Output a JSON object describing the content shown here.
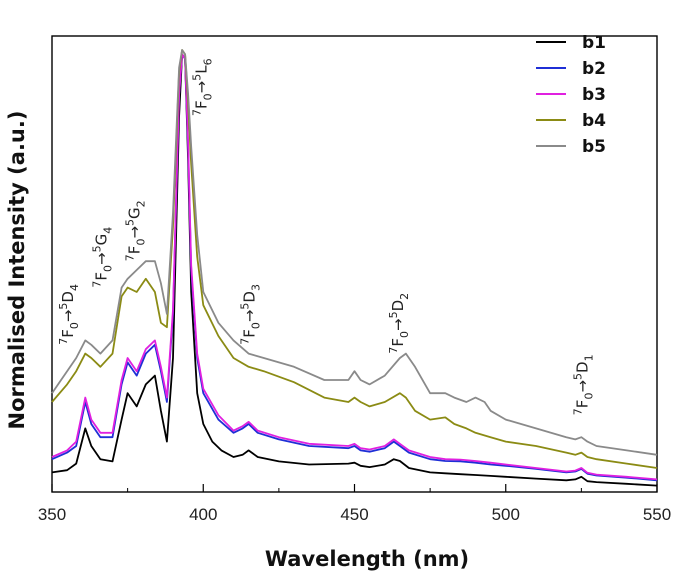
{
  "chart_data": {
    "type": "line",
    "title": "",
    "xlabel": "Wavelength (nm)",
    "ylabel": "Normalised Intensity (a.u.)",
    "xlim": [
      350,
      550
    ],
    "ylim": [
      0,
      1.0
    ],
    "xticks": [
      350,
      400,
      450,
      500,
      550
    ],
    "grid": false,
    "legend_position": "top-right",
    "series": [
      {
        "name": "b1",
        "color": "#000000",
        "x": [
          350,
          355,
          358,
          361,
          363,
          366,
          370,
          373,
          375,
          378,
          381,
          384,
          386,
          388,
          390,
          392,
          393,
          394,
          395,
          396,
          398,
          400,
          403,
          406,
          410,
          413,
          415,
          418,
          425,
          435,
          448,
          450,
          452,
          455,
          460,
          463,
          465,
          468,
          475,
          480,
          485,
          490,
          495,
          500,
          510,
          520,
          523,
          525,
          527,
          530,
          540,
          550
        ],
        "y": [
          0.04,
          0.045,
          0.06,
          0.14,
          0.1,
          0.07,
          0.065,
          0.16,
          0.22,
          0.19,
          0.24,
          0.26,
          0.18,
          0.11,
          0.3,
          0.85,
          0.99,
          0.98,
          0.75,
          0.45,
          0.22,
          0.15,
          0.11,
          0.09,
          0.075,
          0.08,
          0.09,
          0.075,
          0.065,
          0.058,
          0.06,
          0.062,
          0.055,
          0.052,
          0.058,
          0.07,
          0.066,
          0.05,
          0.04,
          0.038,
          0.036,
          0.034,
          0.032,
          0.03,
          0.026,
          0.022,
          0.024,
          0.03,
          0.02,
          0.018,
          0.014,
          0.01
        ]
      },
      {
        "name": "b2",
        "color": "#1f2fd6",
        "x": [
          350,
          355,
          358,
          361,
          363,
          366,
          370,
          373,
          375,
          378,
          381,
          384,
          386,
          388,
          390,
          392,
          393,
          394,
          395,
          396,
          398,
          400,
          405,
          410,
          413,
          415,
          418,
          425,
          435,
          448,
          450,
          452,
          455,
          460,
          463,
          465,
          468,
          475,
          480,
          485,
          490,
          495,
          500,
          510,
          520,
          523,
          525,
          527,
          530,
          540,
          550
        ],
        "y": [
          0.07,
          0.085,
          0.1,
          0.2,
          0.15,
          0.12,
          0.12,
          0.24,
          0.29,
          0.26,
          0.31,
          0.33,
          0.27,
          0.2,
          0.4,
          0.9,
          0.99,
          0.98,
          0.78,
          0.5,
          0.3,
          0.22,
          0.16,
          0.13,
          0.14,
          0.15,
          0.13,
          0.115,
          0.1,
          0.095,
          0.1,
          0.09,
          0.087,
          0.095,
          0.11,
          0.1,
          0.085,
          0.07,
          0.066,
          0.065,
          0.062,
          0.058,
          0.055,
          0.048,
          0.04,
          0.042,
          0.048,
          0.037,
          0.033,
          0.028,
          0.022
        ]
      },
      {
        "name": "b3",
        "color": "#e020e0",
        "x": [
          350,
          355,
          358,
          361,
          363,
          366,
          370,
          373,
          375,
          378,
          381,
          384,
          386,
          388,
          390,
          392,
          393,
          394,
          395,
          396,
          398,
          400,
          405,
          410,
          413,
          415,
          418,
          425,
          435,
          448,
          450,
          452,
          455,
          460,
          463,
          465,
          468,
          475,
          480,
          485,
          490,
          495,
          500,
          510,
          520,
          523,
          525,
          527,
          530,
          540,
          550
        ],
        "y": [
          0.075,
          0.09,
          0.11,
          0.21,
          0.16,
          0.13,
          0.13,
          0.25,
          0.3,
          0.27,
          0.32,
          0.34,
          0.28,
          0.21,
          0.41,
          0.9,
          0.99,
          0.98,
          0.79,
          0.51,
          0.31,
          0.23,
          0.17,
          0.135,
          0.145,
          0.155,
          0.135,
          0.12,
          0.105,
          0.1,
          0.105,
          0.095,
          0.092,
          0.1,
          0.115,
          0.105,
          0.09,
          0.075,
          0.07,
          0.069,
          0.066,
          0.062,
          0.058,
          0.05,
          0.042,
          0.044,
          0.05,
          0.039,
          0.035,
          0.03,
          0.024
        ]
      },
      {
        "name": "b4",
        "color": "#8b8b14",
        "x": [
          350,
          355,
          358,
          361,
          363,
          366,
          370,
          373,
          375,
          378,
          381,
          384,
          386,
          388,
          390,
          392,
          393,
          394,
          395,
          396,
          398,
          400,
          405,
          410,
          415,
          420,
          430,
          440,
          448,
          450,
          452,
          455,
          460,
          465,
          467,
          470,
          475,
          480,
          483,
          487,
          490,
          495,
          500,
          510,
          520,
          523,
          525,
          527,
          530,
          540,
          550
        ],
        "y": [
          0.2,
          0.24,
          0.27,
          0.31,
          0.3,
          0.28,
          0.31,
          0.44,
          0.46,
          0.45,
          0.48,
          0.45,
          0.38,
          0.37,
          0.6,
          0.95,
          1.0,
          0.99,
          0.88,
          0.74,
          0.53,
          0.42,
          0.35,
          0.3,
          0.28,
          0.27,
          0.245,
          0.21,
          0.2,
          0.21,
          0.2,
          0.19,
          0.2,
          0.22,
          0.21,
          0.18,
          0.16,
          0.165,
          0.15,
          0.14,
          0.13,
          0.12,
          0.11,
          0.1,
          0.085,
          0.08,
          0.085,
          0.075,
          0.07,
          0.06,
          0.05
        ]
      },
      {
        "name": "b5",
        "color": "#8a8a8a",
        "x": [
          350,
          355,
          358,
          361,
          363,
          366,
          370,
          373,
          375,
          378,
          381,
          384,
          386,
          388,
          390,
          392,
          393,
          394,
          395,
          396,
          398,
          400,
          405,
          410,
          415,
          420,
          430,
          440,
          448,
          450,
          452,
          455,
          460,
          465,
          467,
          470,
          475,
          480,
          483,
          487,
          490,
          493,
          495,
          500,
          510,
          520,
          523,
          525,
          527,
          530,
          540,
          550
        ],
        "y": [
          0.22,
          0.27,
          0.3,
          0.34,
          0.33,
          0.31,
          0.34,
          0.46,
          0.48,
          0.5,
          0.52,
          0.52,
          0.47,
          0.4,
          0.63,
          0.96,
          1.0,
          0.99,
          0.9,
          0.78,
          0.58,
          0.45,
          0.38,
          0.34,
          0.31,
          0.3,
          0.28,
          0.25,
          0.25,
          0.27,
          0.25,
          0.24,
          0.26,
          0.3,
          0.31,
          0.28,
          0.22,
          0.22,
          0.21,
          0.2,
          0.21,
          0.2,
          0.18,
          0.16,
          0.14,
          0.12,
          0.115,
          0.12,
          0.11,
          0.1,
          0.09,
          0.08
        ]
      }
    ],
    "annotations": [
      {
        "from": "7",
        "from_sym": "F",
        "from_sub": "0",
        "to": "5",
        "to_sym": "D",
        "to_sub": "4",
        "x": 357,
        "y": 0.33
      },
      {
        "from": "7",
        "from_sym": "F",
        "from_sub": "0",
        "to": "5",
        "to_sym": "G",
        "to_sub": "4",
        "x": 368,
        "y": 0.46
      },
      {
        "from": "7",
        "from_sym": "F",
        "from_sub": "0",
        "to": "5",
        "to_sym": "G",
        "to_sub": "2",
        "x": 379,
        "y": 0.52
      },
      {
        "from": "7",
        "from_sym": "F",
        "from_sub": "0",
        "to": "5",
        "to_sym": "L",
        "to_sub": "6",
        "x": 401,
        "y": 0.85
      },
      {
        "from": "7",
        "from_sym": "F",
        "from_sub": "0",
        "to": "5",
        "to_sym": "D",
        "to_sub": "3",
        "x": 417,
        "y": 0.33
      },
      {
        "from": "7",
        "from_sym": "F",
        "from_sub": "0",
        "to": "5",
        "to_sym": "D",
        "to_sub": "2",
        "x": 466,
        "y": 0.31
      },
      {
        "from": "7",
        "from_sym": "F",
        "from_sub": "0",
        "to": "5",
        "to_sym": "D",
        "to_sub": "1",
        "x": 527,
        "y": 0.17
      }
    ]
  }
}
